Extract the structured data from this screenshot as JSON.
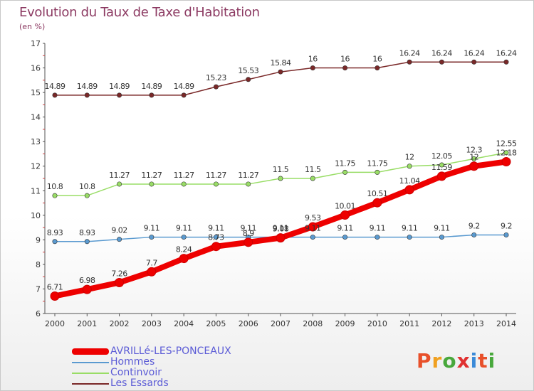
{
  "header": {
    "title": "Evolution du Taux de Taxe d'Habitation",
    "subtitle": "(en %)"
  },
  "logo": {
    "letters": [
      "P",
      "r",
      "o",
      "x",
      "i",
      "t",
      "i"
    ],
    "colors": [
      "#e8502a",
      "#f0a020",
      "#48a83c",
      "#e03030",
      "#3a8ad8",
      "#e8502a",
      "#48a83c"
    ]
  },
  "chart_data": {
    "type": "line",
    "x": [
      "2000",
      "2001",
      "2002",
      "2003",
      "2004",
      "2005",
      "2006",
      "2007",
      "2008",
      "2009",
      "2010",
      "2011",
      "2012",
      "2013",
      "2014"
    ],
    "ylim": [
      6,
      17
    ],
    "yticks": [
      "6",
      "7",
      "8",
      "9",
      "10",
      "11",
      "12",
      "13",
      "14",
      "15",
      "16",
      "17"
    ],
    "grid": false,
    "legend_position": "bottom-left",
    "series": [
      {
        "name": "AVRILLé-LES-PONCEAUX",
        "color": "#ee0000",
        "values": [
          6.71,
          6.98,
          7.26,
          7.7,
          8.24,
          8.73,
          8.9,
          9.08,
          9.53,
          10.01,
          10.51,
          11.04,
          11.59,
          12,
          12.18
        ],
        "labels": [
          "6.71",
          "6.98",
          "7.26",
          "7.7",
          "8.24",
          "8.73",
          "8.9",
          "9.08",
          "9.53",
          "10.01",
          "10.51",
          "11.04",
          "11.59",
          "12",
          "12.18"
        ]
      },
      {
        "name": "Hommes",
        "color": "#5a9ad0",
        "values": [
          8.93,
          8.93,
          9.02,
          9.11,
          9.11,
          9.11,
          9.11,
          9.11,
          9.11,
          9.11,
          9.11,
          9.11,
          9.11,
          9.2,
          9.2
        ],
        "labels": [
          "8.93",
          "8.93",
          "9.02",
          "9.11",
          "9.11",
          "9.11",
          "9.11",
          "9.11",
          "9.11",
          "9.11",
          "9.11",
          "9.11",
          "9.11",
          "9.2",
          "9.2"
        ]
      },
      {
        "name": "Continvoir",
        "color": "#99dd66",
        "values": [
          10.8,
          10.8,
          11.27,
          11.27,
          11.27,
          11.27,
          11.27,
          11.5,
          11.5,
          11.75,
          11.75,
          12,
          12.05,
          12.3,
          12.55
        ],
        "labels": [
          "10.8",
          "10.8",
          "11.27",
          "11.27",
          "11.27",
          "11.27",
          "11.27",
          "11.5",
          "11.5",
          "11.75",
          "11.75",
          "12",
          "12.05",
          "12.3",
          "12.55"
        ]
      },
      {
        "name": "Les Essards",
        "color": "#7a2828",
        "values": [
          14.89,
          14.89,
          14.89,
          14.89,
          14.89,
          15.23,
          15.53,
          15.84,
          16,
          16,
          16,
          16.24,
          16.24,
          16.24,
          16.24
        ],
        "labels": [
          "14.89",
          "14.89",
          "14.89",
          "14.89",
          "14.89",
          "15.23",
          "15.53",
          "15.84",
          "16",
          "16",
          "16",
          "16.24",
          "16.24",
          "16.24",
          "16.24"
        ]
      }
    ]
  }
}
